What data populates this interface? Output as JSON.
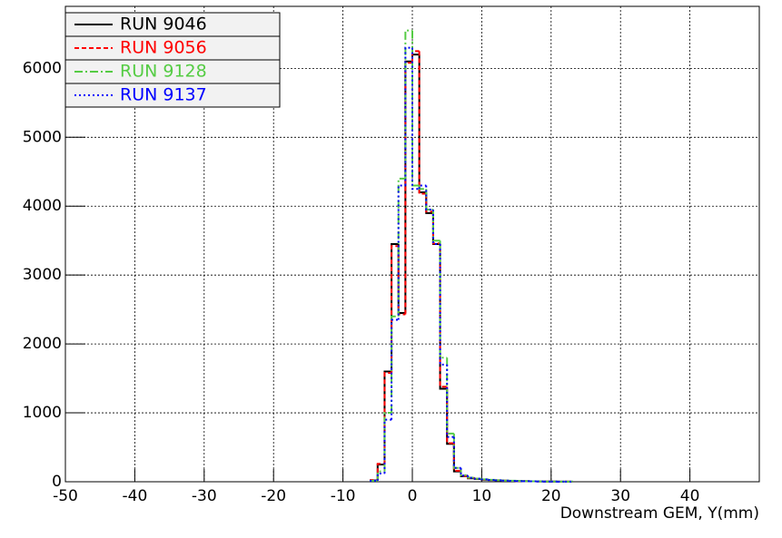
{
  "chart_data": {
    "type": "histogram",
    "xlabel": "Downstream GEM, Y(mm)",
    "bins": [
      -6,
      -5,
      -4,
      -3,
      -2,
      -1,
      0,
      1,
      2,
      3,
      4,
      5,
      6,
      7,
      8,
      9,
      10,
      11,
      12,
      13,
      14,
      15,
      16,
      17,
      18,
      19,
      20,
      21,
      22,
      23
    ],
    "series": [
      {
        "name": "RUN 9046",
        "color": "#000000",
        "linestyle": "solid",
        "values": [
          20,
          250,
          1600,
          3450,
          2450,
          6100,
          6200,
          4200,
          3900,
          3450,
          1350,
          550,
          150,
          80,
          50,
          40,
          30,
          25,
          20,
          15,
          12,
          10,
          8,
          6,
          5,
          4,
          3,
          2,
          2
        ]
      },
      {
        "name": "RUN 9056",
        "color": "#ff0000",
        "linestyle": "dashed",
        "values": [
          25,
          260,
          1580,
          3420,
          2430,
          6080,
          6250,
          4180,
          3920,
          3460,
          1380,
          560,
          160,
          85,
          55,
          42,
          32,
          26,
          21,
          16,
          13,
          10,
          8,
          6,
          5,
          4,
          3,
          2,
          2
        ]
      },
      {
        "name": "RUN 9128",
        "color": "#55cc44",
        "linestyle": "dashdot",
        "values": [
          15,
          150,
          1000,
          2400,
          4400,
          6550,
          4300,
          4250,
          3950,
          3500,
          1800,
          700,
          200,
          95,
          60,
          45,
          35,
          28,
          22,
          17,
          14,
          11,
          9,
          7,
          5,
          4,
          3,
          2,
          2
        ]
      },
      {
        "name": "RUN 9137",
        "color": "#0000ff",
        "linestyle": "dotted",
        "values": [
          15,
          120,
          900,
          2350,
          4300,
          6300,
          4250,
          4300,
          3950,
          3450,
          1700,
          650,
          200,
          90,
          58,
          44,
          34,
          27,
          21,
          16,
          13,
          10,
          8,
          6,
          5,
          4,
          3,
          2,
          2
        ]
      }
    ],
    "xlim": [
      -50,
      50
    ],
    "ylim": [
      0,
      6900
    ],
    "xticks": [
      -50,
      -40,
      -30,
      -20,
      -10,
      0,
      10,
      20,
      30,
      40
    ],
    "yticks": [
      0,
      1000,
      2000,
      3000,
      4000,
      5000,
      6000
    ],
    "grid": true,
    "legend": "top-left"
  }
}
